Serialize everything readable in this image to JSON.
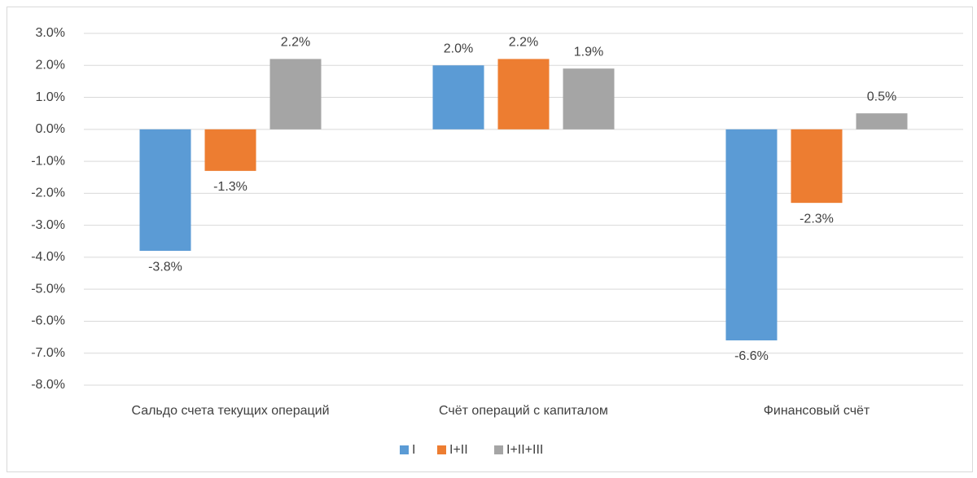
{
  "chart_data": {
    "type": "bar",
    "categories": [
      "Сальдо счета текущих операций",
      "Счёт операций с капиталом",
      "Финансовый счёт"
    ],
    "series": [
      {
        "name": "I",
        "color": "#5b9bd5",
        "values": [
          -3.8,
          2.0,
          -6.6
        ],
        "value_labels": [
          "-3.8%",
          "2.0%",
          "-6.6%"
        ]
      },
      {
        "name": "I+II",
        "color": "#ed7d31",
        "values": [
          -1.3,
          2.2,
          -2.3
        ],
        "value_labels": [
          "-1.3%",
          "2.2%",
          "-2.3%"
        ]
      },
      {
        "name": "I+II+III",
        "color": "#a5a5a5",
        "values": [
          2.2,
          1.9,
          0.5
        ],
        "value_labels": [
          "2.2%",
          "1.9%",
          "0.5%"
        ]
      }
    ],
    "ylim": [
      -8,
      3
    ],
    "yticks": [
      {
        "value": -8,
        "label": "-8.0%"
      },
      {
        "value": -7,
        "label": "-7.0%"
      },
      {
        "value": -6,
        "label": "-6.0%"
      },
      {
        "value": -5,
        "label": "-5.0%"
      },
      {
        "value": -4,
        "label": "-4.0%"
      },
      {
        "value": -3,
        "label": "-3.0%"
      },
      {
        "value": -2,
        "label": "-2.0%"
      },
      {
        "value": -1,
        "label": "-1.0%"
      },
      {
        "value": 0,
        "label": "0.0%"
      },
      {
        "value": 1,
        "label": "1.0%"
      },
      {
        "value": 2,
        "label": "2.0%"
      },
      {
        "value": 3,
        "label": "3.0%"
      }
    ],
    "grid": true,
    "legend": "bottom"
  }
}
